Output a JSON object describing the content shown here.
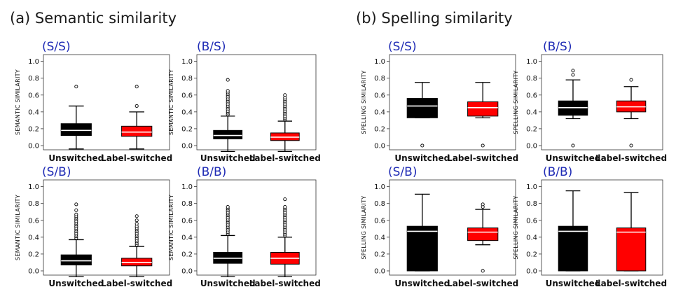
{
  "figure": {
    "section_a_title": "(a) Semantic similarity",
    "section_b_title": "(b) Spelling similarity"
  },
  "chart_data": [
    {
      "type": "box",
      "panel": "(S/S)",
      "ylabel": "SEMANTIC SIMILARITY",
      "ylim": [
        -0.05,
        1.08
      ],
      "yticks": [
        "0.0",
        "0.2",
        "0.4",
        "0.6",
        "0.8",
        "1.0"
      ],
      "categories": [
        "Unswitched",
        "Label-switched"
      ],
      "boxes": [
        {
          "name": "Unswitched",
          "color": "#000000",
          "whislo": -0.04,
          "q1": 0.12,
          "med": 0.18,
          "q3": 0.26,
          "whishi": 0.47,
          "fliers": [
            0.7
          ]
        },
        {
          "name": "Label-switched",
          "color": "#ff0000",
          "whislo": -0.04,
          "q1": 0.11,
          "med": 0.16,
          "q3": 0.23,
          "whishi": 0.4,
          "fliers": [
            0.47,
            0.7
          ]
        }
      ]
    },
    {
      "type": "box",
      "panel": "(B/S)",
      "ylabel": "SEMANTIC SIMILARITY",
      "ylim": [
        -0.05,
        1.08
      ],
      "yticks": [
        "0.0",
        "0.2",
        "0.4",
        "0.6",
        "0.8",
        "1.0"
      ],
      "categories": [
        "Unswitched",
        "Label-switched"
      ],
      "boxes": [
        {
          "name": "Unswitched",
          "color": "#000000",
          "whislo": -0.07,
          "q1": 0.08,
          "med": 0.12,
          "q3": 0.18,
          "whishi": 0.35,
          "fliers": [
            0.37,
            0.39,
            0.41,
            0.43,
            0.45,
            0.47,
            0.49,
            0.51,
            0.53,
            0.55,
            0.57,
            0.59,
            0.61,
            0.63,
            0.65,
            0.78
          ]
        },
        {
          "name": "Label-switched",
          "color": "#ff0000",
          "whislo": -0.07,
          "q1": 0.06,
          "med": 0.1,
          "q3": 0.15,
          "whishi": 0.29,
          "fliers": [
            0.31,
            0.33,
            0.35,
            0.37,
            0.39,
            0.41,
            0.43,
            0.45,
            0.47,
            0.49,
            0.51,
            0.53,
            0.55,
            0.57,
            0.6
          ]
        }
      ]
    },
    {
      "type": "box",
      "panel": "(S/B)",
      "ylabel": "SEMANTIC SIMILARITY",
      "ylim": [
        -0.05,
        1.08
      ],
      "yticks": [
        "0.0",
        "0.2",
        "0.4",
        "0.6",
        "0.8",
        "1.0"
      ],
      "categories": [
        "Unswitched",
        "Label-switched"
      ],
      "boxes": [
        {
          "name": "Unswitched",
          "color": "#000000",
          "whislo": -0.07,
          "q1": 0.07,
          "med": 0.12,
          "q3": 0.19,
          "whishi": 0.37,
          "fliers": [
            0.39,
            0.41,
            0.43,
            0.45,
            0.47,
            0.49,
            0.51,
            0.53,
            0.55,
            0.57,
            0.59,
            0.61,
            0.63,
            0.65,
            0.67,
            0.72,
            0.79
          ]
        },
        {
          "name": "Label-switched",
          "color": "#ff0000",
          "whislo": -0.07,
          "q1": 0.06,
          "med": 0.1,
          "q3": 0.15,
          "whishi": 0.29,
          "fliers": [
            0.31,
            0.33,
            0.35,
            0.37,
            0.39,
            0.41,
            0.43,
            0.45,
            0.47,
            0.49,
            0.51,
            0.53,
            0.56,
            0.6,
            0.65
          ]
        }
      ]
    },
    {
      "type": "box",
      "panel": "(B/B)",
      "ylabel": "SEMANTIC SIMILARITY",
      "ylim": [
        -0.05,
        1.08
      ],
      "yticks": [
        "0.0",
        "0.2",
        "0.4",
        "0.6",
        "0.8",
        "1.0"
      ],
      "categories": [
        "Unswitched",
        "Label-switched"
      ],
      "boxes": [
        {
          "name": "Unswitched",
          "color": "#000000",
          "whislo": -0.07,
          "q1": 0.09,
          "med": 0.15,
          "q3": 0.22,
          "whishi": 0.42,
          "fliers": [
            0.44,
            0.46,
            0.48,
            0.5,
            0.52,
            0.54,
            0.56,
            0.58,
            0.6,
            0.62,
            0.64,
            0.66,
            0.68,
            0.7,
            0.72,
            0.74,
            0.76
          ]
        },
        {
          "name": "Label-switched",
          "color": "#ff0000",
          "whislo": -0.07,
          "q1": 0.08,
          "med": 0.15,
          "q3": 0.22,
          "whishi": 0.4,
          "fliers": [
            0.42,
            0.44,
            0.46,
            0.48,
            0.5,
            0.52,
            0.54,
            0.56,
            0.58,
            0.6,
            0.62,
            0.64,
            0.66,
            0.68,
            0.7,
            0.72,
            0.74,
            0.76,
            0.85
          ]
        }
      ]
    },
    {
      "type": "box",
      "panel": "(S/S)",
      "ylabel": "SPELLING SIMILARITY",
      "ylim": [
        -0.05,
        1.08
      ],
      "yticks": [
        "0.0",
        "0.2",
        "0.4",
        "0.6",
        "0.8",
        "1.0"
      ],
      "categories": [
        "Unswitched",
        "Label-switched"
      ],
      "boxes": [
        {
          "name": "Unswitched",
          "color": "#000000",
          "whislo": 0.33,
          "q1": 0.33,
          "med": 0.47,
          "q3": 0.56,
          "whishi": 0.75,
          "fliers": [
            0.0
          ]
        },
        {
          "name": "Label-switched",
          "color": "#ff0000",
          "whislo": 0.33,
          "q1": 0.35,
          "med": 0.45,
          "q3": 0.52,
          "whishi": 0.75,
          "fliers": [
            0.0
          ]
        }
      ]
    },
    {
      "type": "box",
      "panel": "(B/S)",
      "ylabel": "SPELLING SIMILARITY",
      "ylim": [
        -0.05,
        1.08
      ],
      "yticks": [
        "0.0",
        "0.2",
        "0.4",
        "0.6",
        "0.8",
        "1.0"
      ],
      "categories": [
        "Unswitched",
        "Label-switched"
      ],
      "boxes": [
        {
          "name": "Unswitched",
          "color": "#000000",
          "whislo": 0.32,
          "q1": 0.36,
          "med": 0.45,
          "q3": 0.53,
          "whishi": 0.78,
          "fliers": [
            0.0,
            0.84,
            0.89
          ]
        },
        {
          "name": "Label-switched",
          "color": "#ff0000",
          "whislo": 0.32,
          "q1": 0.4,
          "med": 0.46,
          "q3": 0.53,
          "whishi": 0.7,
          "fliers": [
            0.0,
            0.78
          ]
        }
      ]
    },
    {
      "type": "box",
      "panel": "(S/B)",
      "ylabel": "SPELLING SIMILARITY",
      "ylim": [
        -0.05,
        1.08
      ],
      "yticks": [
        "0.0",
        "0.2",
        "0.4",
        "0.6",
        "0.8",
        "1.0"
      ],
      "categories": [
        "Unswitched",
        "Label-switched"
      ],
      "boxes": [
        {
          "name": "Unswitched",
          "color": "#000000",
          "whislo": 0.0,
          "q1": 0.0,
          "med": 0.47,
          "q3": 0.53,
          "whishi": 0.91,
          "fliers": []
        },
        {
          "name": "Label-switched",
          "color": "#ff0000",
          "whislo": 0.31,
          "q1": 0.36,
          "med": 0.46,
          "q3": 0.51,
          "whishi": 0.73,
          "fliers": [
            0.0,
            0.76,
            0.79
          ]
        }
      ]
    },
    {
      "type": "box",
      "panel": "(B/B)",
      "ylabel": "SPELLING SIMILARITY",
      "ylim": [
        -0.05,
        1.08
      ],
      "yticks": [
        "0.0",
        "0.2",
        "0.4",
        "0.6",
        "0.8",
        "1.0"
      ],
      "categories": [
        "Unswitched",
        "Label-switched"
      ],
      "boxes": [
        {
          "name": "Unswitched",
          "color": "#000000",
          "whislo": 0.0,
          "q1": 0.0,
          "med": 0.47,
          "q3": 0.53,
          "whishi": 0.95,
          "fliers": []
        },
        {
          "name": "Label-switched",
          "color": "#ff0000",
          "whislo": 0.0,
          "q1": 0.0,
          "med": 0.46,
          "q3": 0.51,
          "whishi": 0.93,
          "fliers": []
        }
      ]
    }
  ]
}
